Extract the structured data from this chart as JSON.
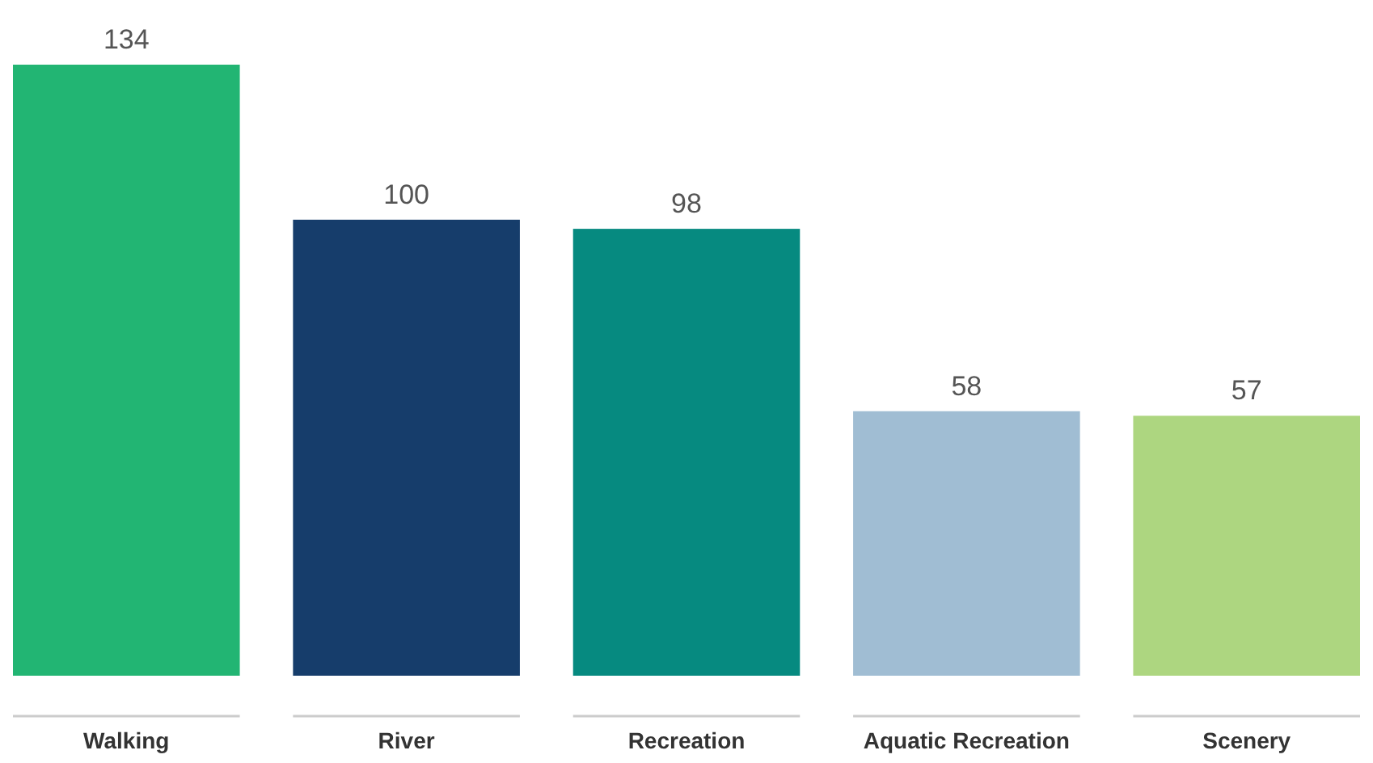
{
  "chart_data": {
    "type": "bar",
    "categories": [
      "Walking",
      "River",
      "Recreation",
      "Aquatic Recreation",
      "Scenery"
    ],
    "values": [
      134,
      100,
      98,
      58,
      57
    ],
    "colors": [
      "#22b573",
      "#163d6b",
      "#068a80",
      "#a0bdd3",
      "#add680"
    ],
    "data_labels": true
  }
}
